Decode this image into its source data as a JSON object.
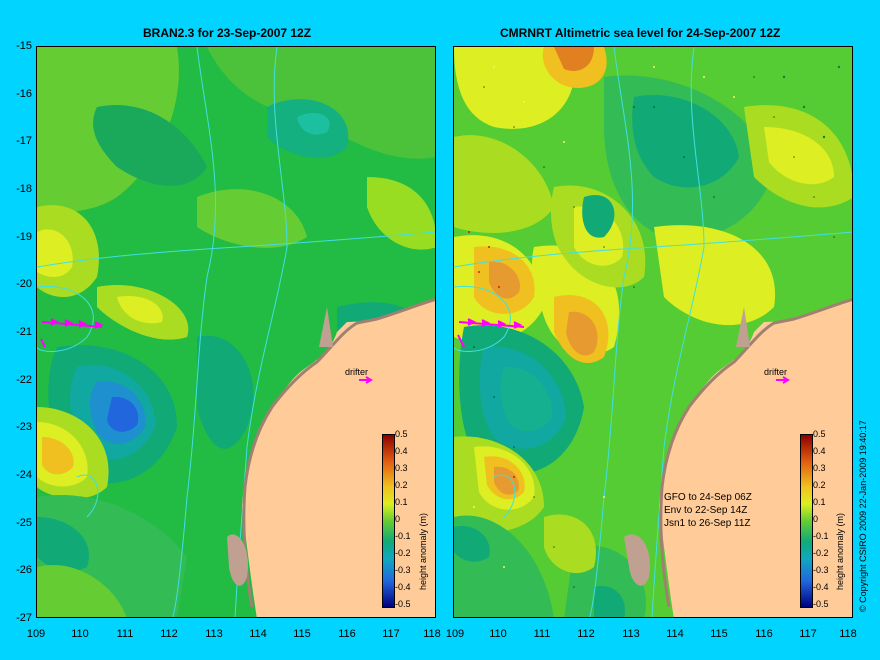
{
  "left_panel": {
    "title": "BRAN2.3 for 23-Sep-2007 12Z",
    "drifter_label": "drifter",
    "colorbar_label": "height anomaly (m)"
  },
  "right_panel": {
    "title": "CMRNRT Altimetric sea level  for 24-Sep-2007 12Z",
    "drifter_label": "drifter",
    "colorbar_label": "height anomaly (m)",
    "notes": [
      "GFO to 24-Sep 06Z",
      "Env to 22-Sep 14Z",
      "Jsn1 to 26-Sep 11Z"
    ]
  },
  "x_ticks": [
    "109",
    "110",
    "111",
    "112",
    "113",
    "114",
    "115",
    "116",
    "117",
    "118"
  ],
  "y_ticks": [
    "-15",
    "-16",
    "-17",
    "-18",
    "-19",
    "-20",
    "-21",
    "-22",
    "-23",
    "-24",
    "-25",
    "-26",
    "-27"
  ],
  "colorbar_ticks": [
    "0.5",
    "0.4",
    "0.3",
    "0.2",
    "0.1",
    "0",
    "-0.1",
    "-0.2",
    "-0.3",
    "-0.4",
    "-0.5"
  ],
  "copyright": "© Copyright CSIRO 2009   22-Jan-2009 19:40:17",
  "colors": {
    "background": "#00d4ff",
    "land": "#ffcc99",
    "coastline": "#a08070",
    "drifter_arrows": "#ff00ff",
    "isobath": "#40e0e0"
  }
}
